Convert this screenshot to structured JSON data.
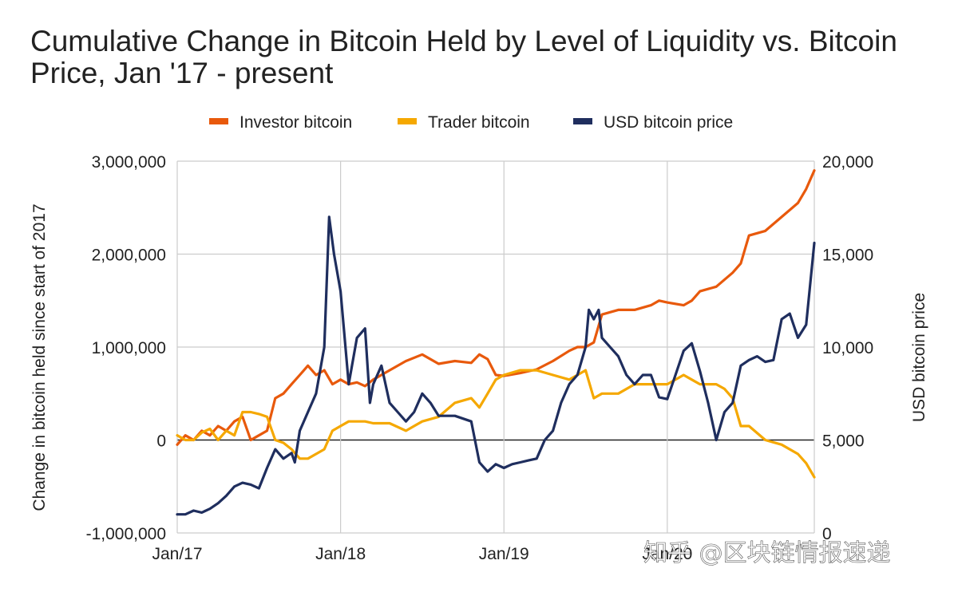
{
  "chart_data": {
    "type": "line",
    "title": "Cumulative Change in Bitcoin Held by Level of Liquidity vs. Bitcoin Price, Jan '17 - present",
    "ylabel": "Change in bitcoin held since start of 2017",
    "y2label": "USD bitcoin price",
    "ylim": [
      -1000000,
      3000000
    ],
    "y2lim": [
      0,
      20000
    ],
    "yticks": [
      "3,000,000",
      "2,000,000",
      "1,000,000",
      "0",
      "-1,000,000"
    ],
    "y2ticks": [
      "20,000",
      "15,000",
      "10,000",
      "5,000",
      "0"
    ],
    "xlim": [
      2017.0,
      2020.9
    ],
    "xticks": [
      {
        "label": "Jan/17",
        "value": 2017.0
      },
      {
        "label": "Jan/18",
        "value": 2018.0
      },
      {
        "label": "Jan/19",
        "value": 2019.0
      },
      {
        "label": "Jan/20",
        "value": 2020.0
      }
    ],
    "grid": true,
    "legend_position": "top",
    "series": [
      {
        "name": "Investor bitcoin",
        "axis": "left",
        "color": "#E8590C",
        "x": [
          2017.0,
          2017.05,
          2017.1,
          2017.15,
          2017.2,
          2017.25,
          2017.3,
          2017.35,
          2017.4,
          2017.45,
          2017.5,
          2017.55,
          2017.6,
          2017.65,
          2017.7,
          2017.75,
          2017.8,
          2017.85,
          2017.9,
          2017.95,
          2018.0,
          2018.05,
          2018.1,
          2018.15,
          2018.2,
          2018.3,
          2018.4,
          2018.5,
          2018.6,
          2018.7,
          2018.8,
          2018.85,
          2018.9,
          2018.95,
          2019.0,
          2019.1,
          2019.2,
          2019.3,
          2019.4,
          2019.45,
          2019.5,
          2019.55,
          2019.6,
          2019.7,
          2019.8,
          2019.9,
          2019.95,
          2020.0,
          2020.1,
          2020.15,
          2020.2,
          2020.3,
          2020.4,
          2020.45,
          2020.5,
          2020.6,
          2020.7,
          2020.8,
          2020.85,
          2020.9
        ],
        "y": [
          -50000,
          50000,
          0,
          100000,
          50000,
          150000,
          100000,
          200000,
          250000,
          0,
          50000,
          100000,
          450000,
          500000,
          600000,
          700000,
          800000,
          700000,
          750000,
          600000,
          650000,
          600000,
          620000,
          580000,
          650000,
          750000,
          850000,
          920000,
          820000,
          850000,
          830000,
          920000,
          870000,
          700000,
          690000,
          720000,
          760000,
          850000,
          960000,
          1000000,
          1000000,
          1050000,
          1350000,
          1400000,
          1400000,
          1450000,
          1500000,
          1480000,
          1450000,
          1500000,
          1600000,
          1650000,
          1800000,
          1900000,
          2200000,
          2250000,
          2400000,
          2550000,
          2700000,
          2900000
        ]
      },
      {
        "name": "Trader bitcoin",
        "axis": "left",
        "color": "#F5A800",
        "x": [
          2017.0,
          2017.05,
          2017.1,
          2017.15,
          2017.2,
          2017.25,
          2017.3,
          2017.35,
          2017.4,
          2017.45,
          2017.5,
          2017.55,
          2017.6,
          2017.65,
          2017.7,
          2017.75,
          2017.8,
          2017.85,
          2017.9,
          2017.95,
          2018.0,
          2018.05,
          2018.1,
          2018.15,
          2018.2,
          2018.3,
          2018.4,
          2018.45,
          2018.5,
          2018.6,
          2018.7,
          2018.8,
          2018.85,
          2018.9,
          2018.95,
          2019.0,
          2019.1,
          2019.2,
          2019.3,
          2019.4,
          2019.45,
          2019.5,
          2019.55,
          2019.6,
          2019.7,
          2019.8,
          2019.9,
          2019.95,
          2020.0,
          2020.1,
          2020.15,
          2020.2,
          2020.3,
          2020.35,
          2020.4,
          2020.45,
          2020.5,
          2020.6,
          2020.7,
          2020.8,
          2020.85,
          2020.9
        ],
        "y": [
          50000,
          0,
          0,
          80000,
          120000,
          0,
          100000,
          50000,
          300000,
          300000,
          280000,
          250000,
          0,
          -30000,
          -100000,
          -200000,
          -200000,
          -150000,
          -100000,
          100000,
          150000,
          200000,
          200000,
          200000,
          180000,
          180000,
          100000,
          150000,
          200000,
          250000,
          400000,
          450000,
          350000,
          500000,
          650000,
          700000,
          750000,
          750000,
          700000,
          650000,
          700000,
          750000,
          450000,
          500000,
          500000,
          600000,
          600000,
          600000,
          600000,
          700000,
          650000,
          600000,
          600000,
          550000,
          450000,
          150000,
          150000,
          0,
          -50000,
          -150000,
          -250000,
          -400000
        ]
      },
      {
        "name": "USD bitcoin price",
        "axis": "right",
        "color": "#1F2E5E",
        "x": [
          2017.0,
          2017.05,
          2017.1,
          2017.15,
          2017.2,
          2017.25,
          2017.3,
          2017.35,
          2017.4,
          2017.45,
          2017.5,
          2017.55,
          2017.6,
          2017.65,
          2017.7,
          2017.72,
          2017.75,
          2017.8,
          2017.85,
          2017.9,
          2017.93,
          2017.96,
          2018.0,
          2018.02,
          2018.05,
          2018.07,
          2018.1,
          2018.15,
          2018.18,
          2018.2,
          2018.25,
          2018.3,
          2018.35,
          2018.4,
          2018.45,
          2018.5,
          2018.55,
          2018.6,
          2018.65,
          2018.7,
          2018.8,
          2018.85,
          2018.9,
          2018.95,
          2019.0,
          2019.05,
          2019.1,
          2019.15,
          2019.2,
          2019.25,
          2019.3,
          2019.35,
          2019.4,
          2019.45,
          2019.5,
          2019.52,
          2019.55,
          2019.58,
          2019.6,
          2019.65,
          2019.7,
          2019.75,
          2019.8,
          2019.85,
          2019.9,
          2019.95,
          2020.0,
          2020.05,
          2020.1,
          2020.15,
          2020.2,
          2020.25,
          2020.3,
          2020.35,
          2020.4,
          2020.45,
          2020.5,
          2020.55,
          2020.6,
          2020.65,
          2020.7,
          2020.75,
          2020.8,
          2020.85,
          2020.9
        ],
        "y": [
          1000,
          1000,
          1200,
          1100,
          1300,
          1600,
          2000,
          2500,
          2700,
          2600,
          2400,
          3500,
          4500,
          4000,
          4300,
          3800,
          5500,
          6500,
          7500,
          10000,
          17000,
          15000,
          13000,
          11000,
          8000,
          9000,
          10500,
          11000,
          7000,
          8000,
          9000,
          7000,
          6500,
          6000,
          6500,
          7500,
          7000,
          6300,
          6300,
          6300,
          6000,
          3800,
          3300,
          3700,
          3500,
          3700,
          3800,
          3900,
          4000,
          5000,
          5500,
          7000,
          8000,
          8500,
          10000,
          12000,
          11500,
          12000,
          10500,
          10000,
          9500,
          8500,
          8000,
          8500,
          8500,
          7300,
          7200,
          8500,
          9800,
          10200,
          8700,
          7000,
          5000,
          6500,
          7000,
          9000,
          9300,
          9500,
          9200,
          9300,
          11500,
          11800,
          10500,
          11200,
          15600
        ]
      }
    ]
  },
  "watermark": "知乎 @区块链情报速递"
}
